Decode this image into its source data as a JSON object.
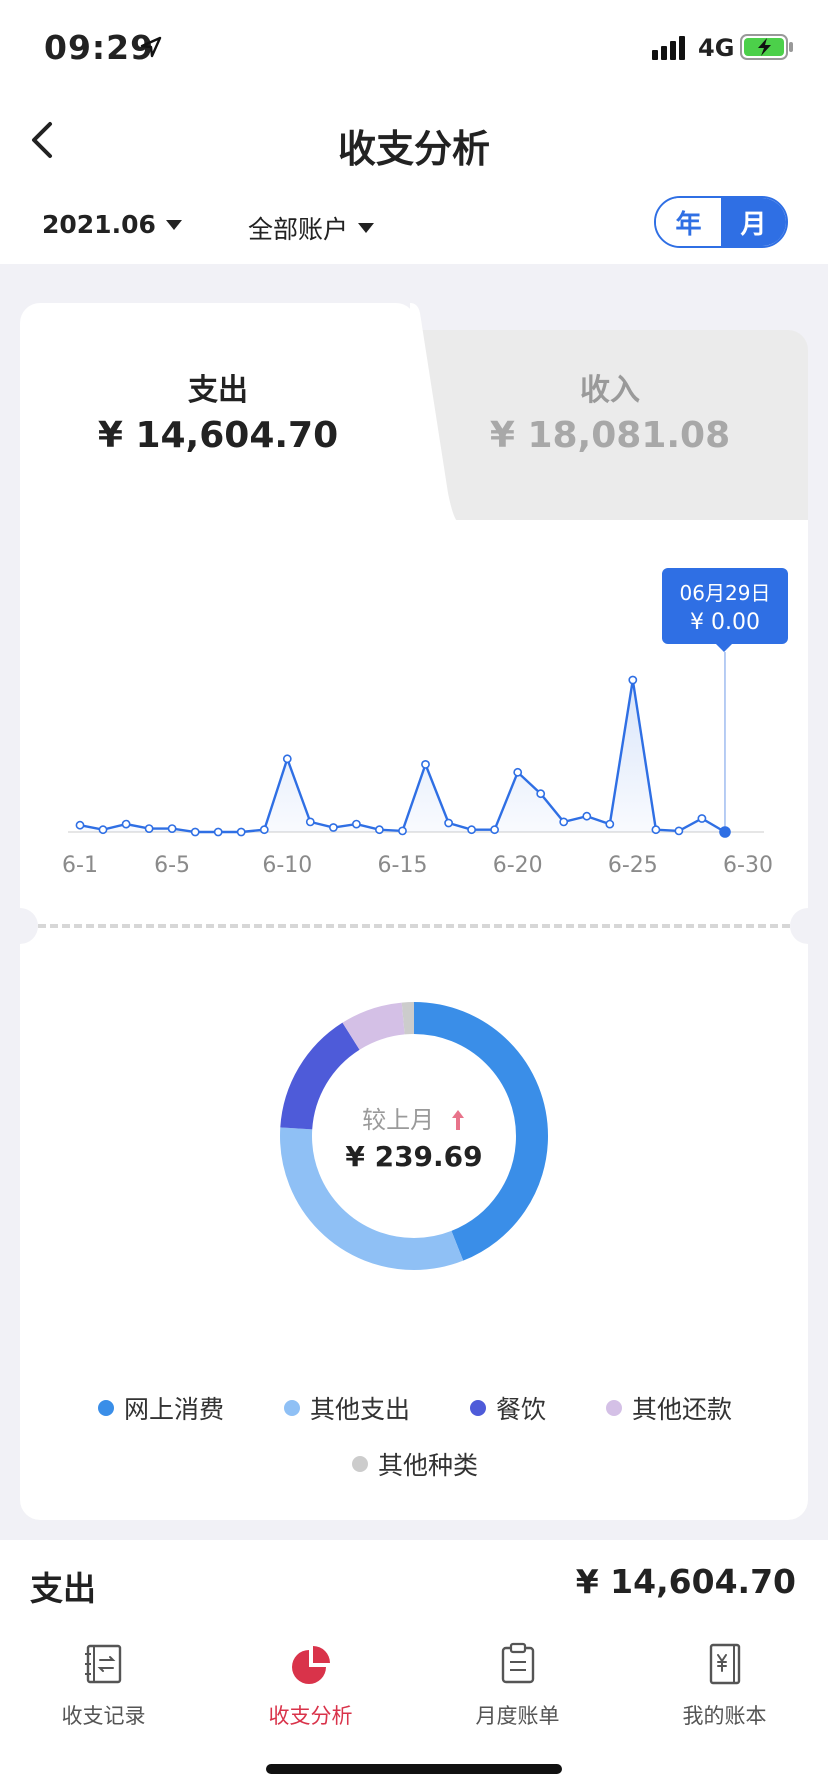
{
  "status": {
    "time": "09:29",
    "network": "4G"
  },
  "header": {
    "title": "收支分析",
    "date_filter": "2021.06",
    "account_filter": "全部账户",
    "toggle_year": "年",
    "toggle_month": "月"
  },
  "tabs": {
    "expense": {
      "label": "支出",
      "amount": "¥ 14,604.70"
    },
    "income": {
      "label": "收入",
      "amount": "¥ 18,081.08"
    }
  },
  "tooltip": {
    "date": "06月29日",
    "value": "¥ 0.00"
  },
  "colors": {
    "accent": "#2f6fe4",
    "active_tab": "#d9334a"
  },
  "chart_data": {
    "type": "line",
    "x": [
      "6-1",
      "6-2",
      "6-3",
      "6-4",
      "6-5",
      "6-6",
      "6-7",
      "6-8",
      "6-9",
      "6-10",
      "6-11",
      "6-12",
      "6-13",
      "6-14",
      "6-15",
      "6-16",
      "6-17",
      "6-18",
      "6-19",
      "6-20",
      "6-21",
      "6-22",
      "6-23",
      "6-24",
      "6-25",
      "6-26",
      "6-27",
      "6-28",
      "6-29"
    ],
    "values": [
      6,
      2,
      7,
      3,
      3,
      0,
      0,
      0,
      2,
      65,
      9,
      4,
      7,
      2,
      1,
      60,
      8,
      2,
      2,
      53,
      34,
      9,
      14,
      7,
      135,
      2,
      1,
      12,
      0
    ],
    "tick_labels": [
      "6-1",
      "6-5",
      "6-10",
      "6-15",
      "6-20",
      "6-25",
      "6-30"
    ],
    "tick_days": [
      1,
      5,
      10,
      15,
      20,
      25,
      30
    ],
    "selected_day": 29,
    "x_range": [
      1,
      30
    ]
  },
  "donut": {
    "center_label": "较上月",
    "center_amount": "¥ 239.69",
    "segments": [
      {
        "name": "网上消费",
        "value": 44,
        "color": "#3a8ee8"
      },
      {
        "name": "其他支出",
        "value": 32,
        "color": "#8fc0f5"
      },
      {
        "name": "餐饮",
        "value": 15,
        "color": "#4e5bd9"
      },
      {
        "name": "其他还款",
        "value": 7.5,
        "color": "#d4c0e6"
      },
      {
        "name": "其他种类",
        "value": 1.5,
        "color": "#cccccc"
      }
    ]
  },
  "summary": {
    "label": "支出",
    "amount": "¥ 14,604.70"
  },
  "tabbar": [
    {
      "label": "收支记录",
      "icon": "ledger-icon"
    },
    {
      "label": "收支分析",
      "icon": "pie-chart-icon"
    },
    {
      "label": "月度账单",
      "icon": "clipboard-icon"
    },
    {
      "label": "我的账本",
      "icon": "yuan-book-icon"
    }
  ]
}
